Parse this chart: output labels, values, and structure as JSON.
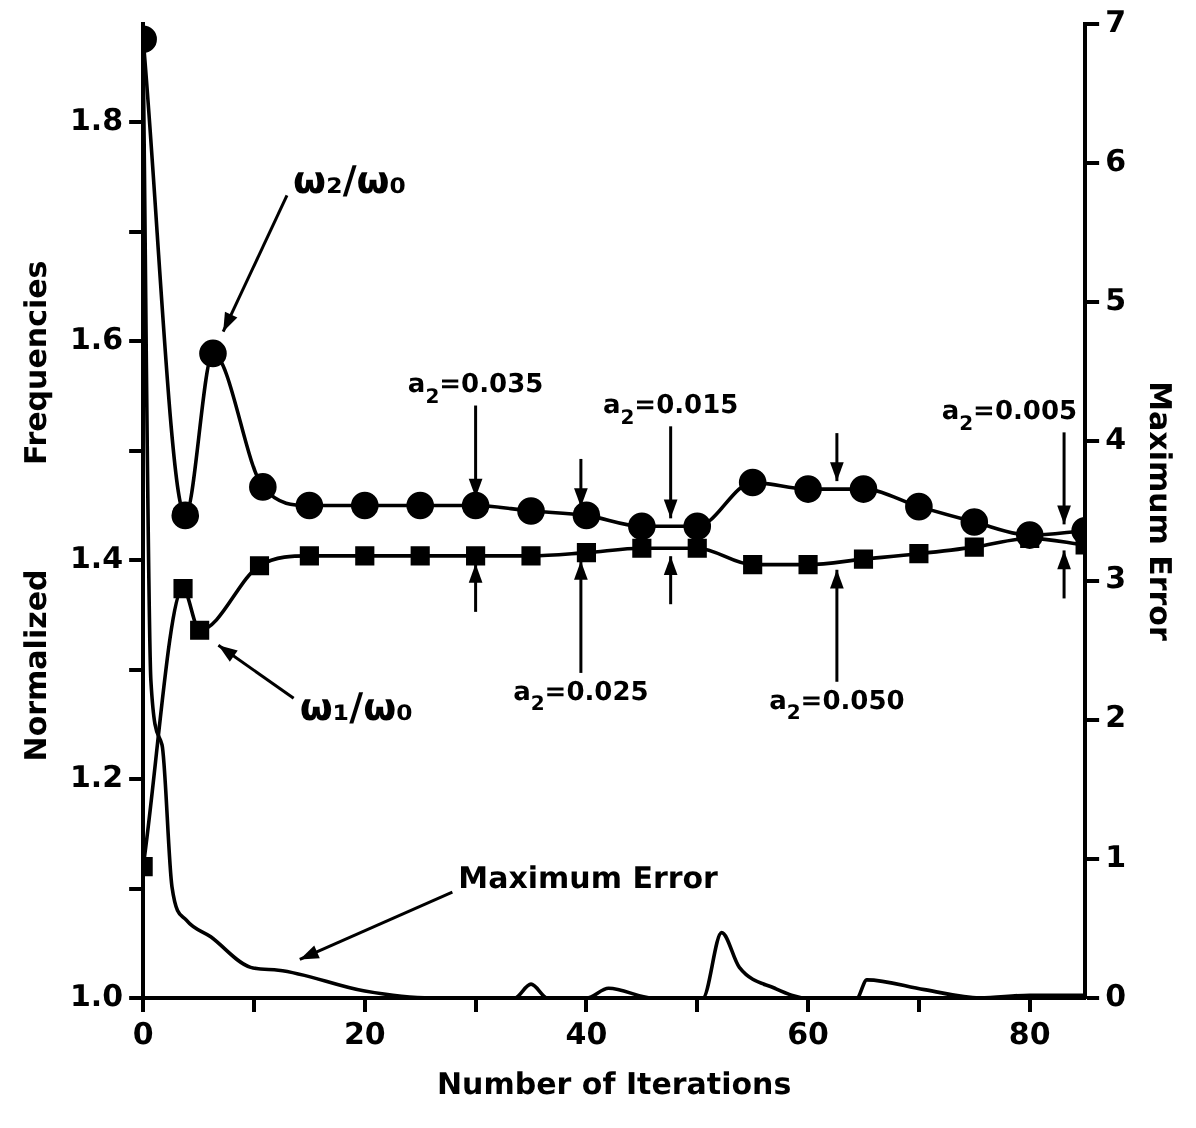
{
  "chart_data": {
    "type": "line",
    "xlabel": "Number of Iterations",
    "ylabel": "Normalized          Frequencies",
    "y2label": "Maximum Error",
    "xlim": [
      0,
      85
    ],
    "xticks": [
      0,
      {
        "value": 10,
        "label": null
      },
      20,
      {
        "value": 30,
        "label": null
      },
      40,
      {
        "value": 50,
        "label": null
      },
      60,
      {
        "value": 70,
        "label": null
      },
      80
    ],
    "ylim": [
      1.0,
      1.89
    ],
    "yticks": [
      {
        "value": 1.0,
        "label": "1.0"
      },
      {
        "value": 1.1,
        "label": null
      },
      1.2,
      {
        "value": 1.3,
        "label": null
      },
      1.4,
      {
        "value": 1.5,
        "label": null
      },
      1.6,
      {
        "value": 1.7,
        "label": null
      },
      1.8
    ],
    "y2lim": [
      0,
      7
    ],
    "y2ticks": [
      0,
      1,
      2,
      3,
      4,
      5,
      6,
      7
    ],
    "legend": false,
    "series": [
      {
        "name": "ω₂/ω₀",
        "color": "#000000",
        "marker": "circle",
        "x": [
          0,
          3.8,
          6.3,
          10.8,
          15,
          20,
          25,
          30,
          35,
          40,
          45,
          50,
          55,
          60,
          65,
          70,
          75,
          80,
          85
        ],
        "values": [
          1.876,
          1.441,
          1.589,
          1.467,
          1.45,
          1.45,
          1.45,
          1.45,
          1.445,
          1.441,
          1.431,
          1.431,
          1.471,
          1.465,
          1.465,
          1.449,
          1.435,
          1.423,
          1.427
        ]
      },
      {
        "name": "ω₁/ω₀",
        "color": "#000000",
        "marker": "square",
        "x": [
          0,
          3.6,
          5.1,
          10.5,
          15,
          20,
          25,
          30,
          35,
          40,
          45,
          50,
          55,
          60,
          65,
          70,
          75,
          80,
          85
        ],
        "values": [
          1.12,
          1.374,
          1.336,
          1.395,
          1.404,
          1.404,
          1.404,
          1.404,
          1.404,
          1.407,
          1.411,
          1.411,
          1.396,
          1.396,
          1.401,
          1.406,
          1.412,
          1.42,
          1.414
        ]
      },
      {
        "name": "Maximum Error",
        "color": "#000000",
        "marker": "none",
        "axis": "y2",
        "x": [
          0,
          0.7,
          1.7,
          2.6,
          3.9,
          6.1,
          9.7,
          12.2,
          20,
          26,
          33.5,
          35,
          36.5,
          40,
          42,
          46,
          50.5,
          52.2,
          53.8,
          57,
          59.9,
          64.4,
          65.3,
          70.5,
          75.5,
          80,
          85
        ],
        "values": [
          6.8,
          2.28,
          1.82,
          0.8,
          0.56,
          0.44,
          0.22,
          0.2,
          0.05,
          0,
          0,
          0.1,
          0,
          0,
          0.07,
          0,
          0,
          0.47,
          0.22,
          0.07,
          0,
          0,
          0.13,
          0.06,
          0,
          0.02,
          0.02
        ]
      }
    ],
    "annotations": [
      {
        "text": "a$_{2}$=0.035",
        "x": 30,
        "y": 1.45
      },
      {
        "text": "a$_{2}$=0.025",
        "x": 39.5,
        "y": 1.407
      },
      {
        "text": "a$_{2}$=0.015",
        "x": 47.6,
        "y": 1.431
      },
      {
        "text": "a$_{2}$=0.050",
        "x": 62.6,
        "y": 1.396
      },
      {
        "text": "a$_{2}$=0.005",
        "x": 83.1,
        "y": 1.425
      }
    ]
  }
}
